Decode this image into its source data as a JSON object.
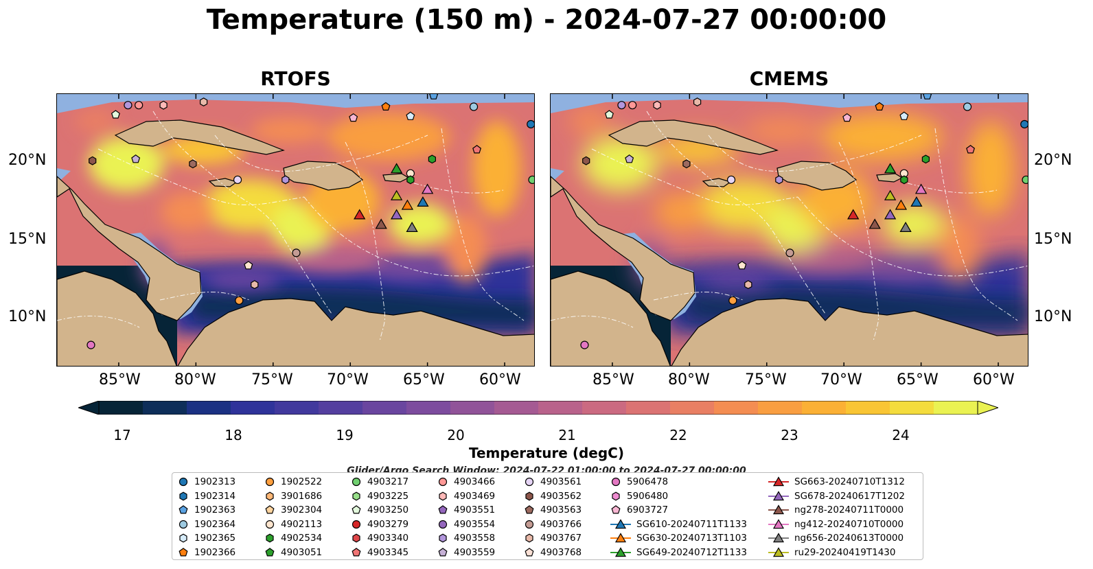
{
  "title": "Temperature (150 m) - 2024-07-27 00:00:00",
  "panels": [
    {
      "name": "RTOFS"
    },
    {
      "name": "CMEMS"
    }
  ],
  "lat_labels": [
    "20°N",
    "15°N",
    "10°N"
  ],
  "lon_labels": [
    "85°W",
    "80°W",
    "75°W",
    "70°W",
    "65°W",
    "60°W"
  ],
  "colorbar": {
    "label": "Temperature (degC)",
    "ticks": [
      "17",
      "18",
      "19",
      "20",
      "21",
      "22",
      "23",
      "24"
    ],
    "colors": [
      "#062437",
      "#0e2e59",
      "#1b3183",
      "#2f339a",
      "#41399d",
      "#543f9f",
      "#6a459f",
      "#7d4c9e",
      "#915399",
      "#a55a93",
      "#b9628b",
      "#cb6a81",
      "#db7373",
      "#e97f63",
      "#f48d52",
      "#f99e41",
      "#fbb035",
      "#f9c534",
      "#f4dc3d",
      "#eaf252"
    ],
    "extend": "both"
  },
  "search_note": "Glider/Argo Search Window: 2024-07-22 01:00:00 to 2024-07-27 00:00:00",
  "legend": [
    {
      "label": "1902313",
      "marker": "circle",
      "color": "#1f77b4"
    },
    {
      "label": "1902314",
      "marker": "hexagon",
      "color": "#1f77b4"
    },
    {
      "label": "1902363",
      "marker": "pentagon",
      "color": "#5aa2e2"
    },
    {
      "label": "1902364",
      "marker": "circle",
      "color": "#9ecae1"
    },
    {
      "label": "1902365",
      "marker": "hexagon",
      "color": "#d6ecfa"
    },
    {
      "label": "1902366",
      "marker": "pentagon",
      "color": "#ff7f0e"
    },
    {
      "label": "1902522",
      "marker": "circle",
      "color": "#ff9f3f"
    },
    {
      "label": "3901686",
      "marker": "hexagon",
      "color": "#ffb877"
    },
    {
      "label": "3902304",
      "marker": "pentagon",
      "color": "#ffd49f"
    },
    {
      "label": "4902113",
      "marker": "circle",
      "color": "#ffe6cf"
    },
    {
      "label": "4902534",
      "marker": "hexagon",
      "color": "#2ca02c"
    },
    {
      "label": "4903051",
      "marker": "pentagon",
      "color": "#2ca02c"
    },
    {
      "label": "4903217",
      "marker": "circle",
      "color": "#70d070"
    },
    {
      "label": "4903225",
      "marker": "hexagon",
      "color": "#98df8a"
    },
    {
      "label": "4903250",
      "marker": "pentagon",
      "color": "#e3f9dd"
    },
    {
      "label": "4903279",
      "marker": "circle",
      "color": "#d62728"
    },
    {
      "label": "4903340",
      "marker": "hexagon",
      "color": "#e0474a"
    },
    {
      "label": "4903345",
      "marker": "pentagon",
      "color": "#f07575"
    },
    {
      "label": "4903466",
      "marker": "circle",
      "color": "#ff9896"
    },
    {
      "label": "4903469",
      "marker": "hexagon",
      "color": "#ffb9b8"
    },
    {
      "label": "4903551",
      "marker": "pentagon",
      "color": "#9467bd"
    },
    {
      "label": "4903554",
      "marker": "circle",
      "color": "#9467bd"
    },
    {
      "label": "4903558",
      "marker": "hexagon",
      "color": "#b296dc"
    },
    {
      "label": "4903559",
      "marker": "pentagon",
      "color": "#c5b0d5"
    },
    {
      "label": "4903561",
      "marker": "circle",
      "color": "#e6d5f5"
    },
    {
      "label": "4903562",
      "marker": "hexagon",
      "color": "#8c564b"
    },
    {
      "label": "4903563",
      "marker": "pentagon",
      "color": "#9c6a5f"
    },
    {
      "label": "4903766",
      "marker": "circle",
      "color": "#c49c94"
    },
    {
      "label": "4903767",
      "marker": "hexagon",
      "color": "#e8b9a9"
    },
    {
      "label": "4903768",
      "marker": "pentagon",
      "color": "#fbe1d6"
    },
    {
      "label": "5906478",
      "marker": "circle",
      "color": "#e377c2"
    },
    {
      "label": "5906480",
      "marker": "hexagon",
      "color": "#ee8bd0"
    },
    {
      "label": "6903727",
      "marker": "pentagon",
      "color": "#f7b6d2"
    },
    {
      "label": "SG610-20240711T1133",
      "marker": "triangle-line",
      "color": "#1f77b4"
    },
    {
      "label": "SG630-20240713T1103",
      "marker": "triangle-line",
      "color": "#ff7f0e"
    },
    {
      "label": "SG649-20240712T1133",
      "marker": "triangle-line",
      "color": "#2ca02c"
    },
    {
      "label": "SG663-20240710T1312",
      "marker": "triangle-line",
      "color": "#d62728"
    },
    {
      "label": "SG678-20240617T1202",
      "marker": "triangle-line",
      "color": "#9467bd"
    },
    {
      "label": "ng278-20240711T0000",
      "marker": "triangle-line",
      "color": "#8c564b"
    },
    {
      "label": "ng412-20240710T0000",
      "marker": "triangle-line",
      "color": "#e377c2"
    },
    {
      "label": "ng656-20240613T0000",
      "marker": "triangle-line",
      "color": "#7f7f7f"
    },
    {
      "label": "ru29-20240419T1430",
      "marker": "triangle-line",
      "color": "#bcbd22"
    }
  ],
  "map_points": [
    {
      "type": "circle",
      "color": "#e377c2",
      "lon": -86.8,
      "lat": 8.4
    },
    {
      "type": "circle",
      "color": "#ff9f3f",
      "lon": -77.2,
      "lat": 11.2
    },
    {
      "type": "hexagon",
      "color": "#e8b9a9",
      "lon": -76.2,
      "lat": 12.2
    },
    {
      "type": "pentagon",
      "color": "#ffe6cf",
      "lon": -76.6,
      "lat": 13.4
    },
    {
      "type": "circle",
      "color": "#c49c94",
      "lon": -73.5,
      "lat": 14.2
    },
    {
      "type": "hexagon",
      "color": "#8c564b",
      "lon": -86.7,
      "lat": 20.0
    },
    {
      "type": "pentagon",
      "color": "#c5b0d5",
      "lon": -83.9,
      "lat": 20.1
    },
    {
      "type": "hexagon",
      "color": "#9c6a5f",
      "lon": -80.2,
      "lat": 19.8
    },
    {
      "type": "circle",
      "color": "#e6d5f5",
      "lon": -77.3,
      "lat": 18.8
    },
    {
      "type": "hexagon",
      "color": "#b296dc",
      "lon": -74.2,
      "lat": 18.8
    },
    {
      "type": "pentagon",
      "color": "#e3f9dd",
      "lon": -85.2,
      "lat": 22.9
    },
    {
      "type": "circle",
      "color": "#b296dc",
      "lon": -84.4,
      "lat": 23.5
    },
    {
      "type": "circle",
      "color": "#ff9896",
      "lon": -83.7,
      "lat": 23.5
    },
    {
      "type": "hexagon",
      "color": "#ffb9b8",
      "lon": -82.1,
      "lat": 23.5
    },
    {
      "type": "hexagon",
      "color": "#e8b9a9",
      "lon": -79.5,
      "lat": 23.7
    },
    {
      "type": "pentagon",
      "color": "#f7b6d2",
      "lon": -69.8,
      "lat": 22.7
    },
    {
      "type": "pentagon",
      "color": "#ff7f0e",
      "lon": -67.7,
      "lat": 23.4
    },
    {
      "type": "pentagon",
      "color": "#d6ecfa",
      "lon": -66.1,
      "lat": 22.8
    },
    {
      "type": "pentagon",
      "color": "#5aa2e2",
      "lon": -64.6,
      "lat": 24.1
    },
    {
      "type": "circle",
      "color": "#9ecae1",
      "lon": -62.0,
      "lat": 23.4
    },
    {
      "type": "pentagon",
      "color": "#f07575",
      "lon": -61.8,
      "lat": 20.7
    },
    {
      "type": "hexagon",
      "color": "#2ca02c",
      "lon": -64.7,
      "lat": 20.1
    },
    {
      "type": "circle",
      "color": "#1f77b4",
      "lon": -58.3,
      "lat": 22.3
    },
    {
      "type": "circle",
      "color": "#70d070",
      "lon": -58.2,
      "lat": 18.8
    },
    {
      "type": "circle",
      "color": "#ffe6cf",
      "lon": -66.1,
      "lat": 19.2
    },
    {
      "type": "hexagon",
      "color": "#2ca02c",
      "lon": -66.1,
      "lat": 18.8
    }
  ],
  "glider_points": [
    {
      "color": "#2ca02c",
      "lon": -67.0,
      "lat": 19.5
    },
    {
      "color": "#bcbd22",
      "lon": -67.0,
      "lat": 17.8
    },
    {
      "color": "#e377c2",
      "lon": -65.0,
      "lat": 18.2
    },
    {
      "color": "#ff7f0e",
      "lon": -66.3,
      "lat": 17.2
    },
    {
      "color": "#1f77b4",
      "lon": -65.3,
      "lat": 17.4
    },
    {
      "color": "#d62728",
      "lon": -69.4,
      "lat": 16.6
    },
    {
      "color": "#8c564b",
      "lon": -68.0,
      "lat": 16.0
    },
    {
      "color": "#9467bd",
      "lon": -67.0,
      "lat": 16.6
    },
    {
      "color": "#7f7f7f",
      "lon": -66.0,
      "lat": 15.8
    }
  ],
  "map_extent": {
    "lon": [
      -89,
      -58
    ],
    "lat": [
      7,
      24.2
    ]
  },
  "land_color": "#d2b48c",
  "shelf_color": "#8fb1e0"
}
